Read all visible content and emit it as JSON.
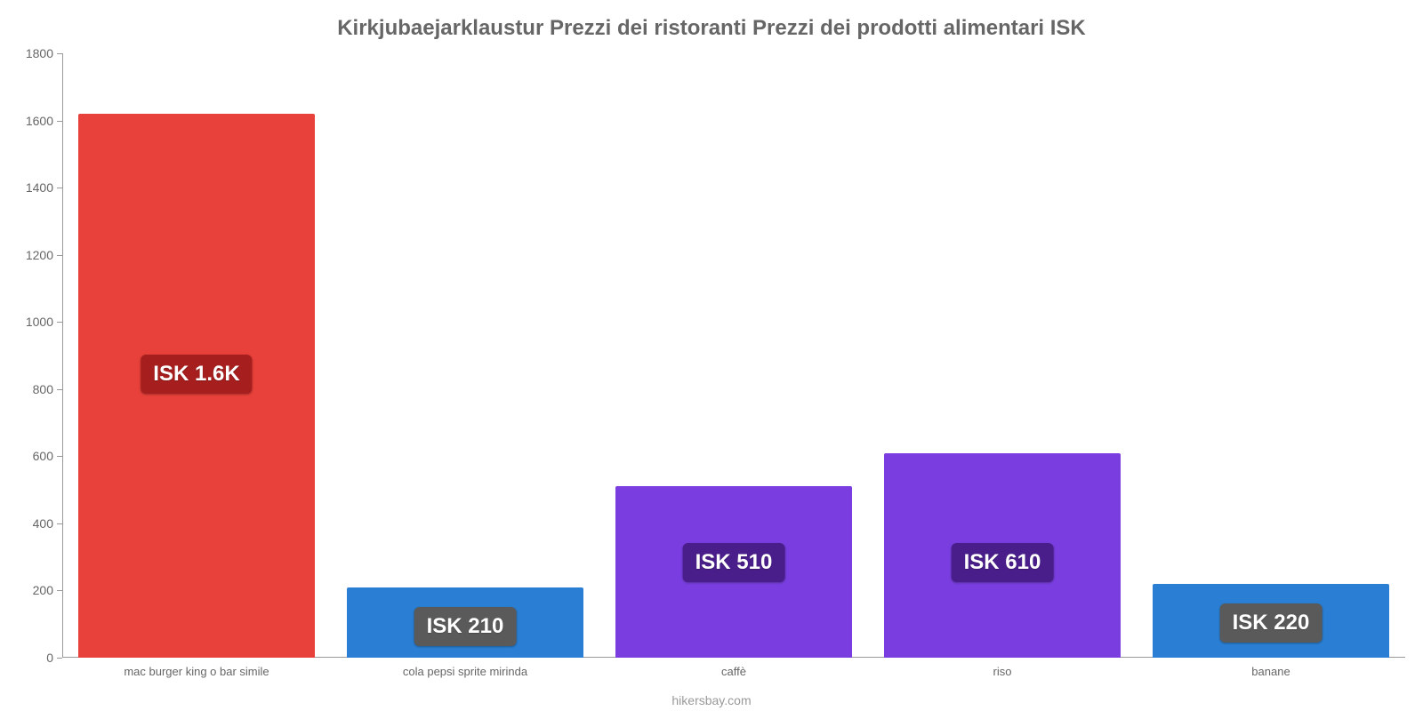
{
  "chart": {
    "type": "bar",
    "title": "Kirkjubaejarklaustur Prezzi dei ristoranti Prezzi dei prodotti alimentari ISK",
    "title_fontsize": 24,
    "title_color": "#666666",
    "background_color": "#ffffff",
    "axis_color": "#999999",
    "tick_font_color": "#666666",
    "tick_fontsize": 14,
    "category_fontsize": 14,
    "ylim": [
      0,
      1800
    ],
    "ytick_step": 200,
    "yticks": [
      0,
      200,
      400,
      600,
      800,
      1000,
      1200,
      1400,
      1600,
      1800
    ],
    "bar_width_ratio": 0.88,
    "categories": [
      "mac burger king o bar simile",
      "cola pepsi sprite mirinda",
      "caffè",
      "riso",
      "banane"
    ],
    "values": [
      1620,
      210,
      510,
      610,
      220
    ],
    "value_labels": [
      "ISK 1.6K",
      "ISK 210",
      "ISK 510",
      "ISK 610",
      "ISK 220"
    ],
    "bar_colors": [
      "#e8403a",
      "#2a7fd4",
      "#7a3ee0",
      "#7a3ee0",
      "#2a7fd4"
    ],
    "badge_colors": [
      "#a61e1e",
      "#5a5a5a",
      "#4a1e8a",
      "#4a1e8a",
      "#5a5a5a"
    ],
    "badge_fontsize": 24,
    "badge_text_color": "#ffffff",
    "label_anchor_value": [
      960,
      210,
      400,
      400,
      220
    ],
    "footer": "hikersbay.com",
    "footer_color": "#999999"
  }
}
